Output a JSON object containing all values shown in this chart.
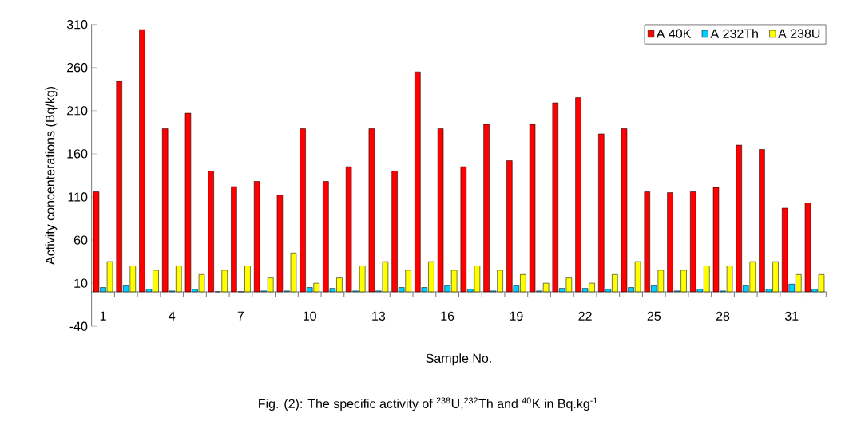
{
  "chart_data": {
    "type": "bar",
    "xlabel": "Sample No.",
    "ylabel": "Activity concenterations (Bq/kg)",
    "annotations": [
      "Fig. (2): The specific activity of $^{238}$U,$^{232}$Th and $^{40}$K in Bq.kg$^{-1}$"
    ],
    "categories": [
      "1",
      null,
      null,
      "4",
      null,
      null,
      "7",
      null,
      null,
      "10",
      null,
      null,
      "13",
      null,
      null,
      "16",
      null,
      null,
      "19",
      null,
      null,
      "22",
      null,
      null,
      "25",
      null,
      null,
      "28",
      null,
      null,
      "31",
      null
    ],
    "series": [
      {
        "name": "A 40K",
        "color": "#ff0000",
        "values": [
          116,
          244,
          304,
          189,
          207,
          140,
          122,
          128,
          112,
          189,
          128,
          145,
          189,
          140,
          255,
          189,
          145,
          194,
          152,
          194,
          219,
          225,
          183,
          189,
          116,
          115,
          116,
          121,
          170,
          165,
          97,
          103
        ]
      },
      {
        "name": "A 232Th",
        "color": "#00ccff",
        "values": [
          5,
          7,
          3,
          1,
          3,
          0,
          0,
          1,
          1,
          5,
          4,
          1,
          1,
          5,
          5,
          7,
          3,
          1,
          7,
          1,
          4,
          4,
          3,
          5,
          7,
          1,
          3,
          1,
          7,
          3,
          9,
          3
        ]
      },
      {
        "name": "A 238U",
        "color": "#ffff00",
        "values": [
          35,
          30,
          25,
          30,
          20,
          25,
          30,
          16,
          45,
          10,
          16,
          30,
          35,
          25,
          35,
          25,
          30,
          25,
          20,
          10,
          16,
          10,
          20,
          35,
          25,
          25,
          30,
          30,
          35,
          35,
          20,
          20
        ]
      }
    ],
    "ylim": [
      -40,
      310
    ],
    "yticks": [
      -40,
      10,
      60,
      110,
      160,
      210,
      260,
      310
    ],
    "grid": false,
    "legend": "top right"
  }
}
